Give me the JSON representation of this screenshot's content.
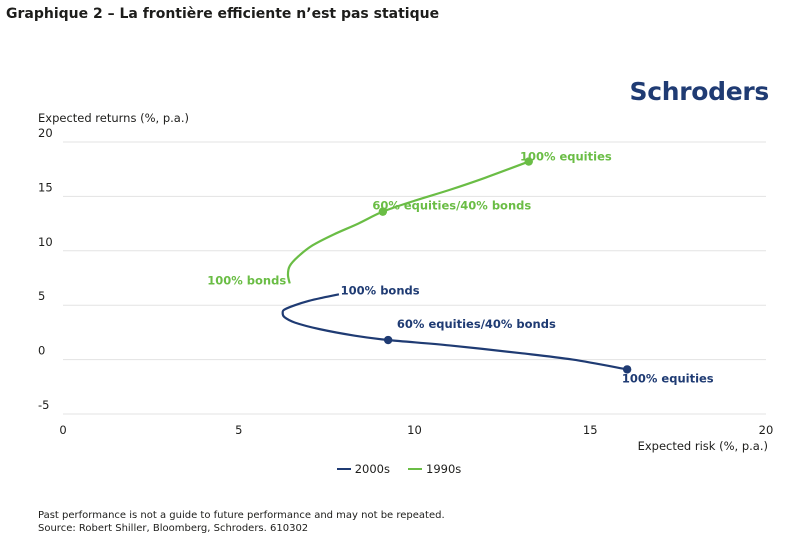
{
  "title": "Graphique 2 – La frontière efficiente n’est pas statique",
  "logo": "Schroders",
  "chart_data": {
    "type": "line",
    "ylabel": "Expected returns (%, p.a.)",
    "xlabel": "Expected risk (%, p.a.)",
    "xlim": [
      0,
      20
    ],
    "ylim": [
      -5,
      20
    ],
    "x_ticks": [
      0,
      5,
      10,
      15,
      20
    ],
    "y_ticks": [
      20,
      15,
      10,
      5,
      0,
      -5
    ],
    "grid": "horizontal",
    "series": [
      {
        "name": "2000s",
        "color": "#1f3b73",
        "points": [
          [
            7.85,
            6.0
          ],
          [
            7.4,
            5.7
          ],
          [
            7.0,
            5.4
          ],
          [
            6.6,
            5.0
          ],
          [
            6.3,
            4.6
          ],
          [
            6.25,
            4.3
          ],
          [
            6.3,
            3.9
          ],
          [
            6.6,
            3.4
          ],
          [
            7.3,
            2.8
          ],
          [
            8.3,
            2.2
          ],
          [
            9.25,
            1.8
          ],
          [
            11,
            1.3
          ],
          [
            13,
            0.6
          ],
          [
            14.5,
            0.0
          ],
          [
            16.05,
            -0.9
          ]
        ]
      },
      {
        "name": "1990s",
        "color": "#6abd45",
        "points": [
          [
            6.45,
            7.0
          ],
          [
            6.4,
            7.8
          ],
          [
            6.45,
            8.6
          ],
          [
            6.7,
            9.5
          ],
          [
            7.1,
            10.5
          ],
          [
            7.7,
            11.5
          ],
          [
            8.4,
            12.5
          ],
          [
            9.1,
            13.6
          ],
          [
            10.0,
            14.6
          ],
          [
            11.0,
            15.6
          ],
          [
            12.0,
            16.7
          ],
          [
            13.25,
            18.2
          ]
        ]
      }
    ],
    "markers": [
      {
        "series": "2000s",
        "x": 9.25,
        "y": 1.8
      },
      {
        "series": "2000s",
        "x": 16.05,
        "y": -0.9
      },
      {
        "series": "1990s",
        "x": 9.1,
        "y": 13.6
      },
      {
        "series": "1990s",
        "x": 13.25,
        "y": 18.2
      }
    ],
    "annotations": [
      {
        "id": "nb",
        "text": "100% bonds",
        "series": "2000s",
        "x": 7.9,
        "y": 6.0
      },
      {
        "id": "nm",
        "text": "60% equities/40% bonds",
        "series": "2000s",
        "x": 9.5,
        "y": 2.9
      },
      {
        "id": "ne",
        "text": "100% equities",
        "series": "2000s",
        "x": 15.9,
        "y": -2.1
      },
      {
        "id": "gb",
        "text": "100% bonds",
        "series": "1990s",
        "x": 6.35,
        "y": 6.9
      },
      {
        "id": "gm",
        "text": "60% equities/40% bonds",
        "series": "1990s",
        "x": 8.8,
        "y": 13.8
      },
      {
        "id": "ge",
        "text": "100% equities",
        "series": "1990s",
        "x": 13.0,
        "y": 18.3
      }
    ]
  },
  "legend": [
    {
      "label": "2000s",
      "color": "#1f3b73"
    },
    {
      "label": "1990s",
      "color": "#6abd45"
    }
  ],
  "footnotes": [
    "Past performance is not a guide to future performance and may not be repeated.",
    "Source: Robert Shiller, Bloomberg, Schroders. 610302"
  ]
}
